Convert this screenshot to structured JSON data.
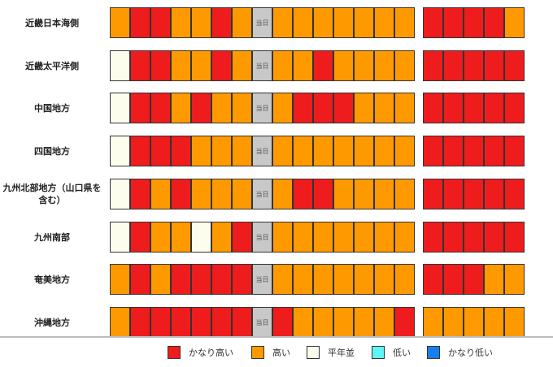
{
  "chart_data": {
    "type": "heatmap",
    "today_label": "当日",
    "colors": {
      "かなり高い": "#ee1c1c",
      "高い": "#ff9900",
      "平年並": "#fdfdee",
      "低い": "#5ff5f5",
      "かなり低い": "#1a7ef0",
      "当日": "#c8c8c8"
    },
    "regions": [
      {
        "name": "近畿日本海側",
        "left": [
          "高い",
          "かなり高い",
          "かなり高い",
          "高い",
          "高い",
          "かなり高い",
          "高い",
          "当日",
          "高い",
          "高い",
          "高い",
          "高い",
          "高い",
          "高い",
          "高い"
        ],
        "right": [
          "かなり高い",
          "かなり高い",
          "かなり高い",
          "かなり高い",
          "高い"
        ]
      },
      {
        "name": "近畿太平洋側",
        "left": [
          "平年並",
          "かなり高い",
          "かなり高い",
          "高い",
          "高い",
          "かなり高い",
          "高い",
          "当日",
          "高い",
          "高い",
          "かなり高い",
          "高い",
          "高い",
          "高い",
          "高い"
        ],
        "right": [
          "かなり高い",
          "かなり高い",
          "かなり高い",
          "かなり高い",
          "かなり高い"
        ]
      },
      {
        "name": "中国地方",
        "left": [
          "平年並",
          "かなり高い",
          "かなり高い",
          "高い",
          "かなり高い",
          "高い",
          "高い",
          "当日",
          "高い",
          "かなり高い",
          "かなり高い",
          "かなり高い",
          "高い",
          "高い",
          "高い"
        ],
        "right": [
          "かなり高い",
          "かなり高い",
          "かなり高い",
          "かなり高い",
          "かなり高い"
        ]
      },
      {
        "name": "四国地方",
        "left": [
          "平年並",
          "かなり高い",
          "かなり高い",
          "かなり高い",
          "高い",
          "高い",
          "高い",
          "当日",
          "高い",
          "高い",
          "高い",
          "高い",
          "高い",
          "高い",
          "高い"
        ],
        "right": [
          "かなり高い",
          "かなり高い",
          "かなり高い",
          "かなり高い",
          "かなり高い"
        ]
      },
      {
        "name": "九州北部地方（山口県を含む）",
        "left": [
          "平年並",
          "かなり高い",
          "高い",
          "かなり高い",
          "高い",
          "高い",
          "高い",
          "当日",
          "高い",
          "かなり高い",
          "かなり高い",
          "高い",
          "高い",
          "高い",
          "高い"
        ],
        "right": [
          "かなり高い",
          "かなり高い",
          "かなり高い",
          "かなり高い",
          "かなり高い"
        ]
      },
      {
        "name": "九州南部",
        "left": [
          "平年並",
          "かなり高い",
          "高い",
          "高い",
          "平年並",
          "高い",
          "かなり高い",
          "当日",
          "高い",
          "高い",
          "高い",
          "高い",
          "高い",
          "高い",
          "高い"
        ],
        "right": [
          "かなり高い",
          "かなり高い",
          "かなり高い",
          "かなり高い",
          "かなり高い"
        ]
      },
      {
        "name": "奄美地方",
        "left": [
          "高い",
          "かなり高い",
          "高い",
          "かなり高い",
          "かなり高い",
          "かなり高い",
          "かなり高い",
          "当日",
          "高い",
          "高い",
          "高い",
          "高い",
          "高い",
          "高い",
          "高い"
        ],
        "right": [
          "かなり高い",
          "かなり高い",
          "かなり高い",
          "高い",
          "高い"
        ]
      },
      {
        "name": "沖縄地方",
        "left": [
          "高い",
          "かなり高い",
          "かなり高い",
          "かなり高い",
          "かなり高い",
          "かなり高い",
          "かなり高い",
          "当日",
          "かなり高い",
          "高い",
          "高い",
          "高い",
          "高い",
          "高い",
          "かなり高い"
        ],
        "right": [
          "高い",
          "高い",
          "高い",
          "高い",
          "高い"
        ]
      }
    ]
  },
  "legend": [
    {
      "label": "かなり高い",
      "color": "#ee1c1c"
    },
    {
      "label": "高い",
      "color": "#ff9900"
    },
    {
      "label": "平年並",
      "color": "#fdfdee"
    },
    {
      "label": "低い",
      "color": "#5ff5f5"
    },
    {
      "label": "かなり低い",
      "color": "#1a7ef0"
    }
  ]
}
